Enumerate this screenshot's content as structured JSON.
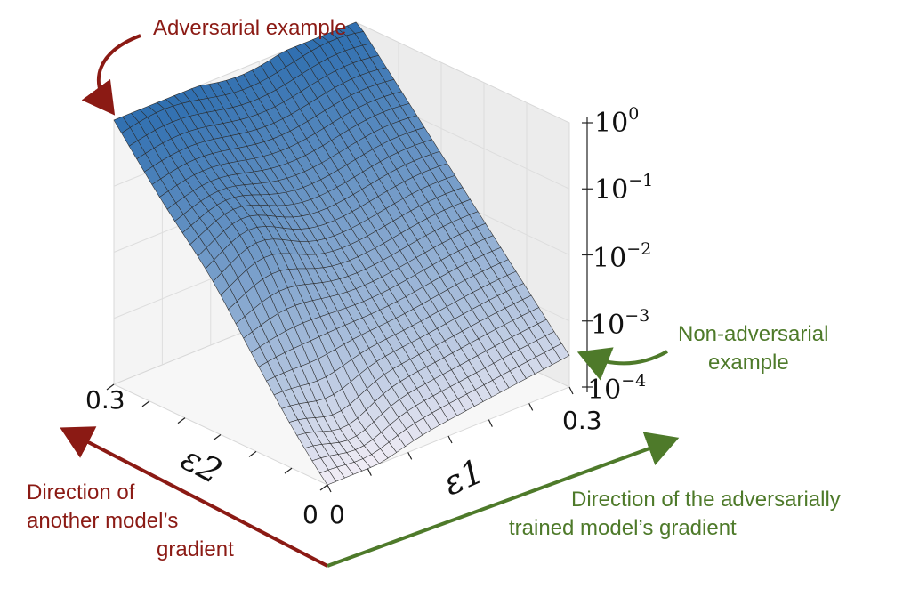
{
  "annotations": {
    "adversarial": "Adversarial example",
    "non_adversarial_line1": "Non-adversarial",
    "non_adversarial_line2": "example",
    "another_model_line1": "Direction of",
    "another_model_line2": "another model’s",
    "another_model_line3": "gradient",
    "adv_trained_line1": "Direction of the adversarially",
    "adv_trained_line2": "trained model’s gradient"
  },
  "colors": {
    "red_arrow": "#8b1a14",
    "green_arrow": "#4e7a2a",
    "surface_high": "#2f6fb0",
    "surface_low": "#f3eef6"
  },
  "chart_data": {
    "type": "surface",
    "title": "",
    "x_axis": {
      "label": "ε1",
      "range": [
        0,
        0.3
      ],
      "tick_labels": [
        "0",
        "0.3"
      ]
    },
    "y_axis": {
      "label": "ε2",
      "range": [
        0,
        0.3
      ],
      "tick_labels": [
        "0",
        "0.3"
      ]
    },
    "z_axis": {
      "scale": "log",
      "range": [
        0.0001,
        1
      ],
      "tick_labels": [
        {
          "base": "10",
          "exp": "0"
        },
        {
          "base": "10",
          "exp": "−1"
        },
        {
          "base": "10",
          "exp": "−2"
        },
        {
          "base": "10",
          "exp": "−3"
        },
        {
          "base": "10",
          "exp": "−4"
        }
      ]
    },
    "corner_values": {
      "eps1_0_eps2_0": 0.0001,
      "eps1_0_eps2_0.3": 1.0,
      "eps1_0.3_eps2_0.3": 1.0,
      "eps1_0.3_eps2_0": 0.0003
    },
    "grid": true,
    "colormap": "Blues"
  }
}
